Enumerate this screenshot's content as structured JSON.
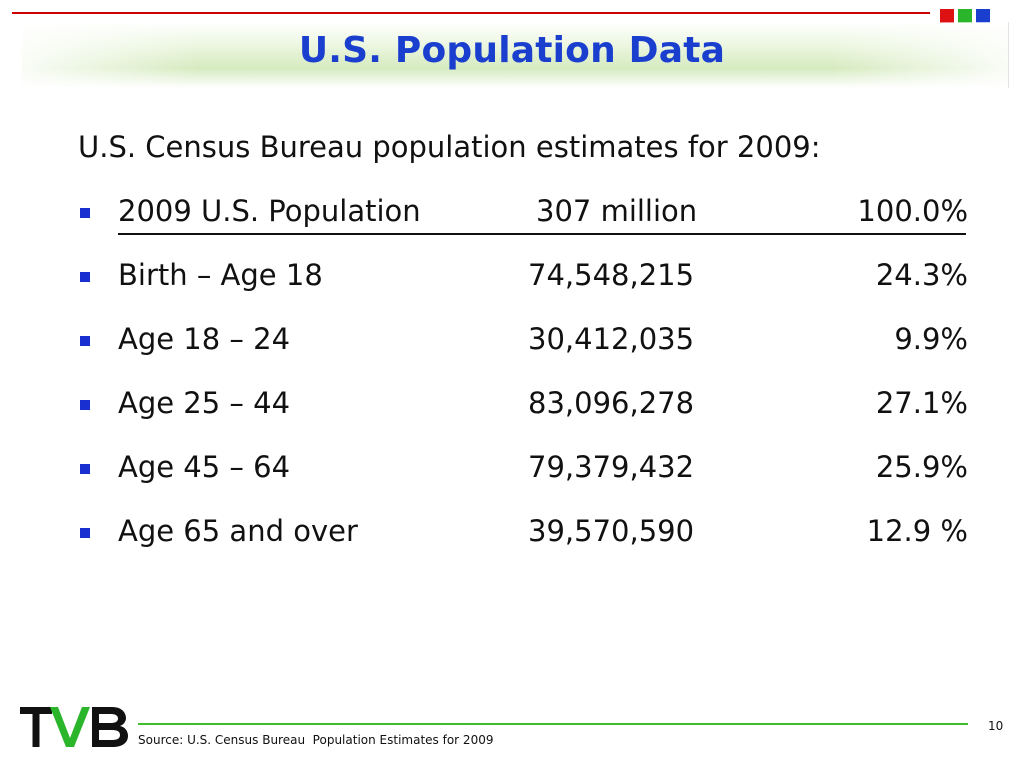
{
  "header": {
    "title": "U.S. Population Data",
    "accent_colors": [
      "#dd1111",
      "#2ab52a",
      "#1a3fcf"
    ]
  },
  "body": {
    "intro": "U.S. Census Bureau population estimates for 2009:",
    "rows": [
      {
        "label": "2009 U.S. Population",
        "count": "307 million",
        "percent": "100.0%"
      },
      {
        "label": "Birth – Age 18",
        "count": "74,548,215",
        "percent": "24.3%"
      },
      {
        "label": "Age 18 – 24",
        "count": "30,412,035",
        "percent": "9.9%"
      },
      {
        "label": "Age 25 – 44",
        "count": "83,096,278",
        "percent": "27.1%"
      },
      {
        "label": "Age 45 – 64",
        "count": "79,379,432",
        "percent": "25.9%"
      },
      {
        "label": "Age 65 and over",
        "count": "39,570,590",
        "percent": "12.9 %"
      }
    ]
  },
  "footer": {
    "logo_text": "TVB",
    "source": "Source: U.S. Census Bureau  Population Estimates for 2009",
    "page_number": "10"
  }
}
